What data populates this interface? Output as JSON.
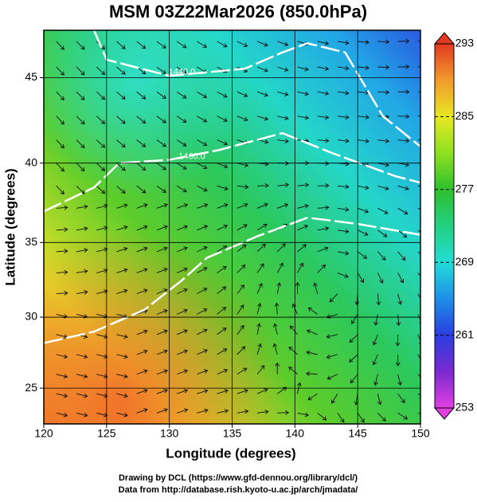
{
  "chart_data": {
    "type": "map",
    "title": "MSM 03Z22Mar2026 (850.0hPa)",
    "x_label": "Longitude (degrees)",
    "y_label": "Latitude  (degrees)",
    "xlim": [
      120,
      150
    ],
    "xticks": [
      120,
      125,
      130,
      135,
      140,
      145,
      150
    ],
    "ylim": [
      22.4,
      47.6
    ],
    "yticks": [
      25,
      30,
      35,
      40,
      45
    ],
    "grid": true,
    "contour_labels": [
      "1440.0",
      "1460.0"
    ],
    "colorbar": {
      "lim": [
        253,
        293
      ],
      "ticks": [
        253,
        261,
        269,
        277,
        285,
        293
      ],
      "colors": [
        "#e23fe0",
        "#7a2ad0",
        "#2a3ee0",
        "#1e8fe8",
        "#22dcd8",
        "#22d080",
        "#2ec02e",
        "#8ee020",
        "#e8e822",
        "#f29a2c",
        "#e23a22"
      ]
    }
  },
  "footer": [
    "Drawing by DCL (https://www.gfd-dennou.org/library/dcl/)",
    "Data from http://database.rish.kyoto-u.ac.jp/arch/jmadata/"
  ]
}
